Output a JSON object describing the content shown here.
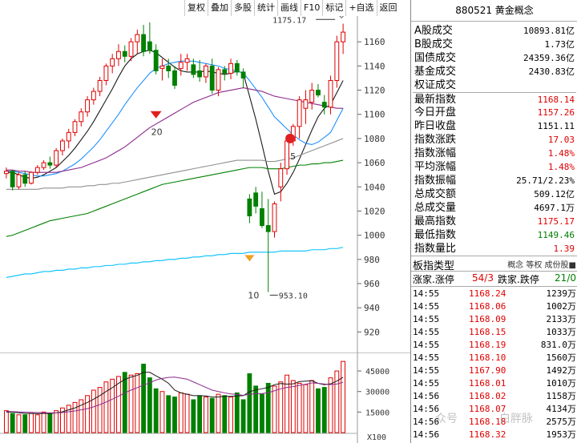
{
  "toolbar": {
    "items": [
      "复权",
      "叠加",
      "多股",
      "统计",
      "画线",
      "F10",
      "标记",
      "+自选",
      "返回"
    ]
  },
  "right_panel": {
    "title": "880521 黄金概念",
    "rows": [
      {
        "label": "A股成交",
        "value": "10893.81亿",
        "color": "#000000"
      },
      {
        "label": "B股成交",
        "value": "1.73亿",
        "color": "#000000"
      },
      {
        "label": "国债成交",
        "value": "24359.36亿",
        "color": "#000000"
      },
      {
        "label": "基金成交",
        "value": "2430.83亿",
        "color": "#000000"
      },
      {
        "label": "权证成交",
        "value": "",
        "color": "#000000"
      },
      {
        "label": "最新指数",
        "value": "1168.14",
        "color": "#e00000"
      },
      {
        "label": "今日开盘",
        "value": "1157.26",
        "color": "#e00000"
      },
      {
        "label": "昨日收盘",
        "value": "1151.11",
        "color": "#000000"
      },
      {
        "label": "指数涨跌",
        "value": "17.03",
        "color": "#e00000"
      },
      {
        "label": "指数涨幅",
        "value": "1.48%",
        "color": "#e00000"
      },
      {
        "label": "平均涨幅",
        "value": "1.48%",
        "color": "#e00000"
      },
      {
        "label": "指数振幅",
        "value": "25.71/2.23%",
        "color": "#000000"
      },
      {
        "label": "总成交额",
        "value": "509.12亿",
        "color": "#000000"
      },
      {
        "label": "总成交量",
        "value": "4697.1万",
        "color": "#000000"
      },
      {
        "label": "最高指数",
        "value": "1175.17",
        "color": "#e00000"
      },
      {
        "label": "最低指数",
        "value": "1149.46",
        "color": "#008000"
      },
      {
        "label": "指数量比",
        "value": "1.39",
        "color": "#e00000"
      }
    ],
    "sector": {
      "label": "板指类型",
      "tags": "概念 等权 成份股■"
    },
    "updown": {
      "up_label": "涨家.涨停",
      "up_value": "54/3",
      "down_label": "跌家.跌停",
      "down_value": "21/0"
    },
    "ticks": [
      {
        "time": "14:55",
        "price": "1168.24",
        "vol": "1239万"
      },
      {
        "time": "14:55",
        "price": "1168.06",
        "vol": "1002万"
      },
      {
        "time": "14:55",
        "price": "1168.09",
        "vol": "2133万"
      },
      {
        "time": "14:55",
        "price": "1168.15",
        "vol": "1033万"
      },
      {
        "time": "14:55",
        "price": "1168.19",
        "vol": "831.0万"
      },
      {
        "time": "14:55",
        "price": "1168.10",
        "vol": "1560万"
      },
      {
        "time": "14:55",
        "price": "1167.90",
        "vol": "1492万"
      },
      {
        "time": "14:55",
        "price": "1168.01",
        "vol": "1010万"
      },
      {
        "time": "14:56",
        "price": "1168.02",
        "vol": "1158万"
      },
      {
        "time": "14:56",
        "price": "1168.07",
        "vol": "4134万"
      },
      {
        "time": "14:56",
        "price": "1168.18",
        "vol": "2575万"
      },
      {
        "time": "14:56",
        "price": "1168.32",
        "vol": "1953万"
      }
    ]
  },
  "watermark": {
    "text1": "众号",
    "text2": "白胖脉"
  },
  "chart_data": {
    "type": "candlestick",
    "y_ticks": [
      1160,
      1140,
      1120,
      1100,
      1080,
      1060,
      1040,
      1020,
      1000,
      980,
      960,
      940,
      920
    ],
    "ylim": [
      907,
      1180
    ],
    "annotations": {
      "high_label": "1175.17",
      "low_label": "953.10",
      "mark_20": "20",
      "mark_5": "5",
      "mark_10": "10"
    },
    "candles": [
      [
        1051,
        1056,
        1047,
        1053
      ],
      [
        1053,
        1054,
        1037,
        1040
      ],
      [
        1040,
        1052,
        1038,
        1050
      ],
      [
        1050,
        1053,
        1040,
        1043
      ],
      [
        1043,
        1053,
        1042,
        1052
      ],
      [
        1052,
        1058,
        1050,
        1056
      ],
      [
        1056,
        1062,
        1054,
        1060
      ],
      [
        1060,
        1065,
        1055,
        1058
      ],
      [
        1058,
        1072,
        1056,
        1070
      ],
      [
        1070,
        1080,
        1066,
        1078
      ],
      [
        1078,
        1088,
        1072,
        1085
      ],
      [
        1085,
        1096,
        1082,
        1094
      ],
      [
        1094,
        1105,
        1090,
        1102
      ],
      [
        1102,
        1115,
        1098,
        1112
      ],
      [
        1112,
        1122,
        1108,
        1119
      ],
      [
        1119,
        1131,
        1115,
        1128
      ],
      [
        1128,
        1142,
        1124,
        1140
      ],
      [
        1140,
        1150,
        1134,
        1146
      ],
      [
        1146,
        1158,
        1140,
        1152
      ],
      [
        1152,
        1157,
        1143,
        1148
      ],
      [
        1148,
        1163,
        1144,
        1160
      ],
      [
        1160,
        1170,
        1150,
        1166
      ],
      [
        1166,
        1174,
        1148,
        1152
      ],
      [
        1160,
        1176,
        1150,
        1153
      ],
      [
        1153,
        1158,
        1133,
        1136
      ],
      [
        1138,
        1146,
        1128,
        1140
      ],
      [
        1140,
        1146,
        1130,
        1136
      ],
      [
        1136,
        1140,
        1121,
        1124
      ],
      [
        1138,
        1150,
        1132,
        1143
      ],
      [
        1143,
        1150,
        1136,
        1146
      ],
      [
        1141,
        1146,
        1130,
        1133
      ],
      [
        1136,
        1145,
        1127,
        1131
      ],
      [
        1131,
        1142,
        1126,
        1140
      ],
      [
        1140,
        1146,
        1117,
        1120
      ],
      [
        1120,
        1139,
        1115,
        1137
      ],
      [
        1137,
        1140,
        1128,
        1134
      ],
      [
        1134,
        1146,
        1129,
        1142
      ],
      [
        1142,
        1145,
        1132,
        1135
      ],
      [
        1135,
        1138,
        1122,
        1130
      ],
      [
        1030,
        1034,
        1010,
        1016
      ],
      [
        1035,
        1040,
        1018,
        1024
      ],
      [
        1022,
        1036,
        1006,
        1008
      ],
      [
        1008,
        1030,
        953,
        1003
      ],
      [
        1003,
        1028,
        998,
        1026
      ],
      [
        1040,
        1060,
        1028,
        1055
      ],
      [
        1055,
        1080,
        1050,
        1078
      ],
      [
        1078,
        1092,
        1074,
        1090
      ],
      [
        1090,
        1115,
        1080,
        1112
      ],
      [
        1105,
        1120,
        1092,
        1112
      ],
      [
        1110,
        1126,
        1104,
        1120
      ],
      [
        1120,
        1125,
        1114,
        1116
      ],
      [
        1110,
        1116,
        1100,
        1106
      ],
      [
        1106,
        1132,
        1100,
        1128
      ],
      [
        1128,
        1165,
        1122,
        1160
      ],
      [
        1160,
        1175,
        1150,
        1168
      ]
    ],
    "ma_lines": [
      {
        "name": "MA5",
        "color": "#1a1a1a",
        "values": [
          1052,
          1052,
          1050,
          1048,
          1047,
          1048,
          1050,
          1053,
          1056,
          1061,
          1066,
          1072,
          1079,
          1086,
          1094,
          1103,
          1112,
          1121,
          1131,
          1140,
          1146,
          1150,
          1152,
          1153,
          1151,
          1147,
          1143,
          1139,
          1136,
          1135,
          1135,
          1135,
          1136,
          1135,
          1134,
          1133,
          1134,
          1136,
          1134,
          1115,
          1096,
          1075,
          1053,
          1034,
          1036,
          1043,
          1052,
          1063,
          1075,
          1087,
          1098,
          1105,
          1108,
          1118,
          1128
        ]
      },
      {
        "name": "MA10",
        "color": "#1e90ff",
        "values": [
          1053,
          1053,
          1052,
          1051,
          1050,
          1049,
          1049,
          1050,
          1051,
          1053,
          1056,
          1059,
          1063,
          1068,
          1073,
          1079,
          1086,
          1093,
          1100,
          1108,
          1115,
          1122,
          1128,
          1134,
          1138,
          1140,
          1142,
          1143,
          1144,
          1144,
          1144,
          1143,
          1142,
          1141,
          1140,
          1138,
          1137,
          1136,
          1134,
          1128,
          1121,
          1114,
          1106,
          1098,
          1093,
          1088,
          1083,
          1079,
          1076,
          1075,
          1077,
          1081,
          1085,
          1095,
          1105
        ]
      },
      {
        "name": "MA20",
        "color": "#8b2a8b",
        "values": [
          1054,
          1054,
          1053,
          1053,
          1052,
          1052,
          1052,
          1052,
          1052,
          1053,
          1054,
          1055,
          1056,
          1058,
          1060,
          1062,
          1064,
          1067,
          1070,
          1073,
          1077,
          1081,
          1085,
          1089,
          1092,
          1095,
          1098,
          1101,
          1104,
          1107,
          1110,
          1112,
          1114,
          1116,
          1118,
          1119,
          1120,
          1121,
          1122,
          1121,
          1120,
          1119,
          1117,
          1115,
          1114,
          1113,
          1112,
          1111,
          1110,
          1109,
          1108,
          1107,
          1106,
          1105,
          1105
        ]
      },
      {
        "name": "MA60",
        "color": "#909090",
        "values": [
          1038,
          1038,
          1038,
          1038,
          1038,
          1038,
          1039,
          1039,
          1039,
          1039,
          1040,
          1040,
          1040,
          1041,
          1041,
          1042,
          1042,
          1043,
          1043,
          1044,
          1045,
          1046,
          1047,
          1048,
          1049,
          1050,
          1051,
          1052,
          1053,
          1054,
          1055,
          1056,
          1057,
          1058,
          1059,
          1060,
          1061,
          1062,
          1062,
          1062,
          1062,
          1062,
          1061,
          1061,
          1062,
          1063,
          1064,
          1066,
          1068,
          1070,
          1072,
          1074,
          1076,
          1078,
          1080
        ]
      },
      {
        "name": "MA120",
        "color": "#008000",
        "values": [
          999,
          1000,
          1002,
          1004,
          1006,
          1008,
          1010,
          1012,
          1013,
          1014,
          1015,
          1016,
          1017,
          1018,
          1020,
          1022,
          1024,
          1026,
          1028,
          1030,
          1032,
          1034,
          1036,
          1038,
          1040,
          1042,
          1043,
          1044,
          1045,
          1046,
          1047,
          1048,
          1049,
          1050,
          1051,
          1052,
          1053,
          1054,
          1055,
          1056,
          1056,
          1056,
          1055,
          1055,
          1055,
          1056,
          1057,
          1058,
          1058,
          1059,
          1059,
          1060,
          1060,
          1061,
          1062
        ]
      },
      {
        "name": "MA250",
        "color": "#00bfff",
        "values": [
          965,
          966,
          967,
          968,
          968,
          969,
          970,
          970,
          971,
          971,
          972,
          972,
          973,
          973,
          974,
          974,
          975,
          975,
          976,
          976,
          977,
          977,
          978,
          978,
          979,
          979,
          980,
          980,
          981,
          981,
          982,
          982,
          983,
          983,
          984,
          984,
          985,
          985,
          985,
          986,
          986,
          986,
          986,
          986,
          987,
          987,
          987,
          987,
          987,
          988,
          988,
          988,
          989,
          989,
          990
        ]
      }
    ],
    "volume": {
      "y_ticks": [
        45000,
        30000,
        15000
      ],
      "ylim": [
        0,
        55000
      ],
      "multiplier": "X100",
      "values": [
        16000,
        14000,
        13000,
        13000,
        14000,
        13000,
        15000,
        14000,
        16000,
        18000,
        20000,
        22000,
        24000,
        27000,
        31000,
        33000,
        37000,
        39000,
        41000,
        44000,
        42000,
        43000,
        50000,
        40000,
        32000,
        30000,
        27000,
        26000,
        29000,
        28000,
        24000,
        27000,
        26000,
        25000,
        28000,
        27000,
        26000,
        29000,
        24000,
        43000,
        34000,
        28000,
        36000,
        34000,
        37000,
        42000,
        38000,
        36000,
        35000,
        38000,
        32000,
        33000,
        40000,
        45000,
        52000
      ],
      "lines": [
        {
          "name": "VOL-MA5",
          "color": "#1a1a1a",
          "values": [
            15000,
            15000,
            14500,
            14000,
            14000,
            13800,
            14000,
            14000,
            14400,
            15200,
            16600,
            18000,
            20000,
            22000,
            24400,
            27000,
            30000,
            32800,
            36000,
            38800,
            40600,
            41800,
            44000,
            44000,
            41400,
            39000,
            36000,
            31000,
            29000,
            28000,
            27000,
            27000,
            26800,
            26000,
            26000,
            26600,
            26400,
            26800,
            27000,
            29800,
            31200,
            32000,
            33000,
            35000,
            35800,
            35400,
            35600,
            37200,
            37600,
            37800,
            36000,
            35000,
            35600,
            37600,
            40400
          ]
        },
        {
          "name": "VOL-MA10",
          "color": "#8b2a8b",
          "values": [
            15500,
            15300,
            15100,
            14900,
            14800,
            14600,
            14500,
            14400,
            14400,
            14600,
            15200,
            15800,
            16600,
            17500,
            18800,
            20400,
            22300,
            24400,
            26600,
            29000,
            31000,
            32800,
            34700,
            36400,
            38400,
            39600,
            40300,
            40500,
            39800,
            39000,
            37000,
            35000,
            33000,
            31000,
            30000,
            29000,
            28200,
            27900,
            27200,
            28000,
            28400,
            28500,
            29200,
            30500,
            32000,
            33000,
            33600,
            34500,
            35300,
            36300,
            36000,
            35500,
            35000,
            35500,
            36800
          ]
        }
      ]
    }
  }
}
